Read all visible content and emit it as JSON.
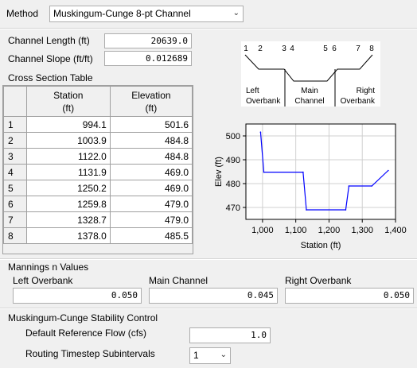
{
  "method": {
    "label": "Method",
    "value": "Muskingum-Cunge 8-pt Channel"
  },
  "channel_length": {
    "label": "Channel Length (ft)",
    "value": "20639.0"
  },
  "channel_slope": {
    "label": "Channel Slope (ft/ft)",
    "value": "0.012689"
  },
  "cross_section": {
    "title": "Cross Section Table",
    "headers": [
      "Station\n(ft)",
      "Elevation\n(ft)"
    ],
    "header_station_1": "Station",
    "header_station_2": "(ft)",
    "header_elev_1": "Elevation",
    "header_elev_2": "(ft)",
    "rows": [
      {
        "n": "1",
        "station": "994.1",
        "elevation": "501.6"
      },
      {
        "n": "2",
        "station": "1003.9",
        "elevation": "484.8"
      },
      {
        "n": "3",
        "station": "1122.0",
        "elevation": "484.8"
      },
      {
        "n": "4",
        "station": "1131.9",
        "elevation": "469.0"
      },
      {
        "n": "5",
        "station": "1250.2",
        "elevation": "469.0"
      },
      {
        "n": "6",
        "station": "1259.8",
        "elevation": "479.0"
      },
      {
        "n": "7",
        "station": "1328.7",
        "elevation": "479.0"
      },
      {
        "n": "8",
        "station": "1378.0",
        "elevation": "485.5"
      }
    ]
  },
  "schematic": {
    "points": [
      "1",
      "2",
      "3",
      "4",
      "5",
      "6",
      "7",
      "8"
    ],
    "left_1": "Left",
    "left_2": "Overbank",
    "main_1": "Main",
    "main_2": "Channel",
    "right_1": "Right",
    "right_2": "Overbank"
  },
  "chart_data": {
    "type": "line",
    "x": [
      994.1,
      1003.9,
      1122.0,
      1131.9,
      1250.2,
      1259.8,
      1328.7,
      1378.0
    ],
    "y": [
      501.6,
      484.8,
      484.8,
      469.0,
      469.0,
      479.0,
      479.0,
      485.5
    ],
    "xlabel": "Station (ft)",
    "ylabel": "Elev (ft)",
    "xlim": [
      950,
      1400
    ],
    "ylim": [
      465,
      505
    ],
    "xticks": [
      1000,
      1100,
      1200,
      1300,
      1400
    ],
    "xtick_labels": [
      "1,000",
      "1,100",
      "1,200",
      "1,300",
      "1,400"
    ],
    "yticks": [
      470,
      480,
      490,
      500
    ],
    "ytick_labels": [
      "470",
      "480",
      "490",
      "500"
    ],
    "line_color": "#0000ff",
    "grid": true
  },
  "mannings": {
    "title": "Mannings n Values",
    "left_label": "Left Overbank",
    "left_value": "0.050",
    "main_label": "Main Channel",
    "main_value": "0.045",
    "right_label": "Right Overbank",
    "right_value": "0.050"
  },
  "stability": {
    "title": "Muskingum-Cunge Stability Control",
    "ref_flow_label": "Default Reference Flow (cfs)",
    "ref_flow_value": "1.0",
    "subint_label": "Routing Timestep Subintervals",
    "subint_value": "1"
  }
}
